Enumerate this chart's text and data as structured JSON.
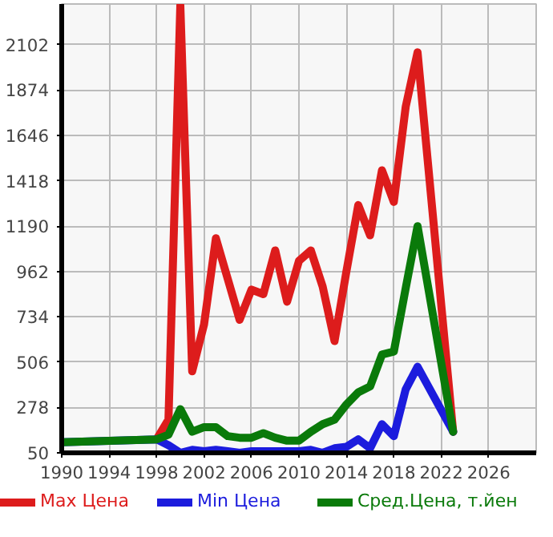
{
  "chart_data": {
    "type": "line",
    "x": [
      1990,
      1998,
      1999,
      2000,
      2001,
      2002,
      2003,
      2004,
      2005,
      2006,
      2007,
      2008,
      2009,
      2010,
      2011,
      2012,
      2013,
      2014,
      2015,
      2016,
      2017,
      2018,
      2019,
      2020,
      2023
    ],
    "series": [
      {
        "name": "Max Цена",
        "color": "#dd1c1c",
        "values": [
          null,
          118,
          217,
          2300,
          460,
          696,
          1129,
          924,
          719,
          871,
          848,
          1068,
          810,
          1015,
          1068,
          886,
          612,
          962,
          1296,
          1144,
          1471,
          1312,
          1790,
          2064,
          156
        ]
      },
      {
        "name": "Min Цена",
        "color": "#1c1cdd",
        "values": [
          103,
          118,
          88,
          50,
          65,
          58,
          65,
          58,
          50,
          58,
          58,
          58,
          58,
          58,
          65,
          50,
          73,
          80,
          118,
          73,
          194,
          134,
          369,
          483,
          156
        ]
      },
      {
        "name": "Сред.Цена, т.йен",
        "color": "#0a7a0a",
        "values": [
          103,
          118,
          141,
          270,
          156,
          179,
          179,
          134,
          126,
          126,
          149,
          126,
          111,
          111,
          156,
          194,
          217,
          293,
          354,
          384,
          544,
          559,
          878,
          1190,
          156
        ]
      }
    ],
    "xlim": [
      1990,
      2030
    ],
    "xticks": [
      1990,
      1994,
      1998,
      2002,
      2006,
      2010,
      2014,
      2018,
      2022,
      2026
    ],
    "ylim": [
      50,
      2307
    ],
    "yticks": [
      50,
      278,
      506,
      734,
      962,
      1190,
      1418,
      1646,
      1874,
      2102
    ],
    "grid": true,
    "legend": "bottom",
    "line_style": "solid"
  }
}
